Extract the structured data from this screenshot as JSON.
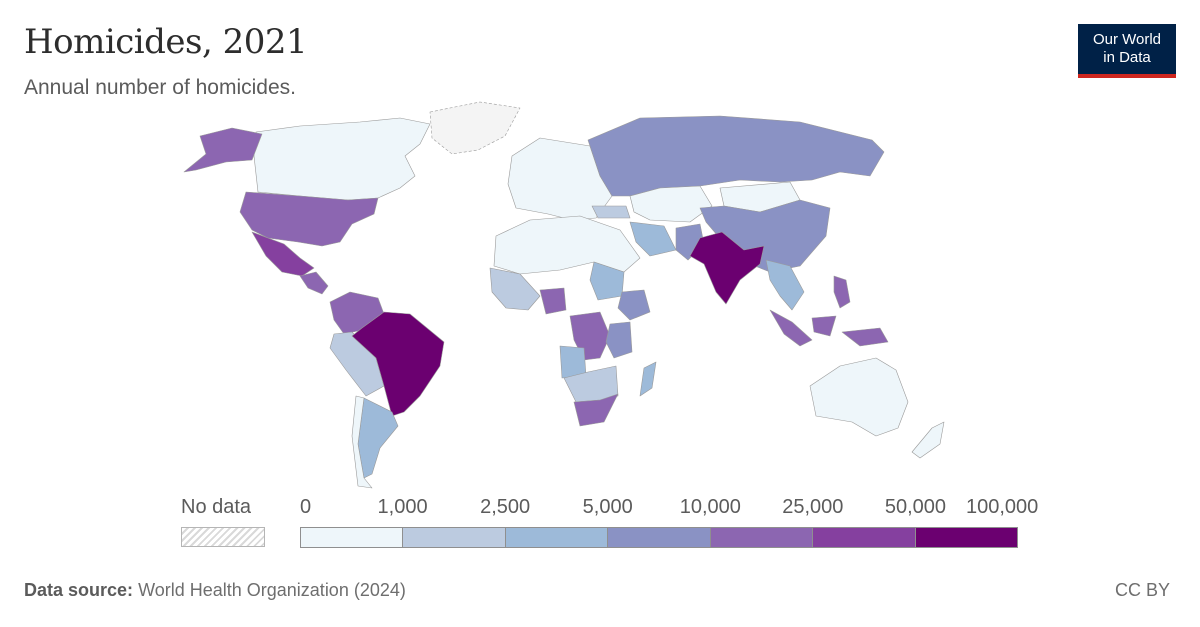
{
  "title": "Homicides, 2021",
  "subtitle": "Annual number of homicides.",
  "logo": {
    "line1": "Our World",
    "line2": "in Data"
  },
  "legend": {
    "no_data_label": "No data",
    "ticks": [
      "0",
      "1,000",
      "2,500",
      "5,000",
      "10,000",
      "25,000",
      "50,000",
      "100,000"
    ],
    "bin_colors": [
      "#eef6fa",
      "#bccbe0",
      "#9dbad9",
      "#8a92c4",
      "#8c66b1",
      "#85409f",
      "#6b0070"
    ]
  },
  "footer": {
    "source_label": "Data source:",
    "source_text": "World Health Organization (2024)",
    "license": "CC BY"
  },
  "colors": {
    "no_data": "#d9d9d9",
    "land_outline": "#b5b5b5"
  },
  "chart_data": {
    "type": "choropleth",
    "title": "Homicides, 2021",
    "subtitle": "Annual number of homicides.",
    "bins": [
      0,
      1000,
      2500,
      5000,
      10000,
      25000,
      50000,
      100000
    ],
    "regions": [
      {
        "name": "Canada",
        "bin": 0
      },
      {
        "name": "Greenland",
        "bin": -1
      },
      {
        "name": "Alaska (United States)",
        "bin": 4
      },
      {
        "name": "United States",
        "bin": 4
      },
      {
        "name": "Mexico",
        "bin": 5
      },
      {
        "name": "Central America",
        "bin": 4
      },
      {
        "name": "Colombia",
        "bin": 4
      },
      {
        "name": "Venezuela",
        "bin": 4
      },
      {
        "name": "Brazil",
        "bin": 6
      },
      {
        "name": "Peru",
        "bin": 1
      },
      {
        "name": "Bolivia",
        "bin": 1
      },
      {
        "name": "Chile",
        "bin": 0
      },
      {
        "name": "Argentina",
        "bin": 2
      },
      {
        "name": "Russia",
        "bin": 3
      },
      {
        "name": "Kazakhstan",
        "bin": 0
      },
      {
        "name": "Mongolia",
        "bin": 0
      },
      {
        "name": "China",
        "bin": 3
      },
      {
        "name": "India",
        "bin": 6
      },
      {
        "name": "Pakistan",
        "bin": 3
      },
      {
        "name": "Iran",
        "bin": 2
      },
      {
        "name": "Europe",
        "bin": 0
      },
      {
        "name": "Turkey",
        "bin": 1
      },
      {
        "name": "North Africa",
        "bin": 0
      },
      {
        "name": "Sudan",
        "bin": 2
      },
      {
        "name": "Nigeria",
        "bin": 4
      },
      {
        "name": "West Africa",
        "bin": 1
      },
      {
        "name": "Ethiopia",
        "bin": 3
      },
      {
        "name": "DR Congo",
        "bin": 4
      },
      {
        "name": "Tanzania",
        "bin": 3
      },
      {
        "name": "Angola",
        "bin": 2
      },
      {
        "name": "South Africa",
        "bin": 4
      },
      {
        "name": "Madagascar",
        "bin": 2
      },
      {
        "name": "Southeast Asia",
        "bin": 2
      },
      {
        "name": "Indonesia",
        "bin": 4
      },
      {
        "name": "Philippines",
        "bin": 4
      },
      {
        "name": "Australia",
        "bin": 0
      },
      {
        "name": "New Zealand",
        "bin": 0
      }
    ]
  }
}
